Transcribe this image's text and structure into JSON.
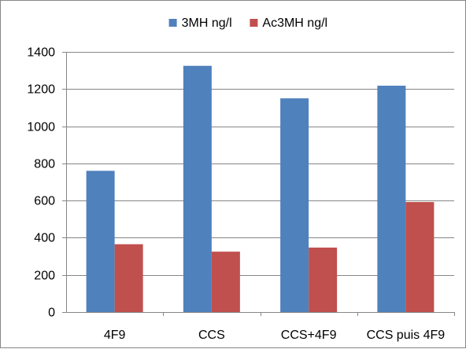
{
  "chart_data": {
    "type": "bar",
    "title": "",
    "xlabel": "",
    "ylabel": "",
    "categories": [
      "4F9",
      "CCS",
      "CCS+4F9",
      "CCS puis 4F9"
    ],
    "series": [
      {
        "name": "3MH ng/l",
        "values": [
          760,
          1325,
          1150,
          1218
        ],
        "color": "#4F81BD"
      },
      {
        "name": "Ac3MH ng/l",
        "values": [
          365,
          325,
          347,
          592
        ],
        "color": "#C0504D"
      }
    ],
    "ylim": [
      0,
      1400
    ],
    "yticks": [
      0,
      200,
      400,
      600,
      800,
      1000,
      1200,
      1400
    ],
    "grid": true,
    "legend_position": "top",
    "colors": {
      "grid": "#868686",
      "axis": "#868686",
      "border": "#868686"
    }
  }
}
